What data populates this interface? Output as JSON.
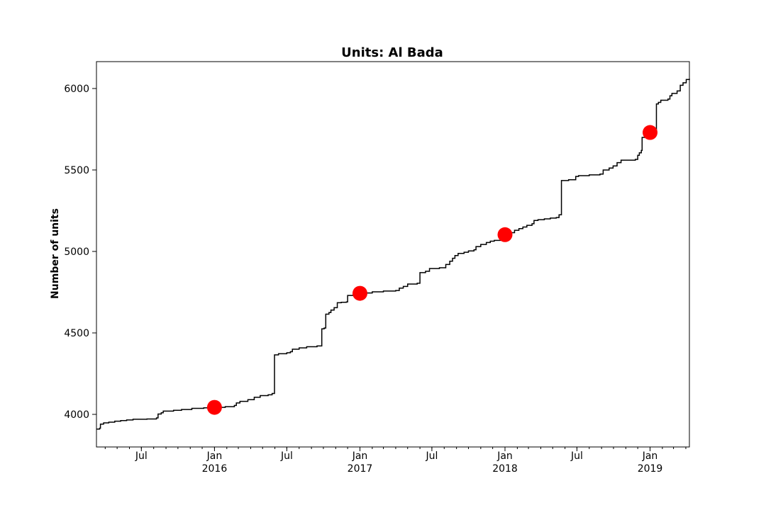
{
  "chart_data": {
    "type": "line",
    "title": "Units: Al Bada",
    "xlabel": "",
    "ylabel": "Number of units",
    "ylim": [
      3800,
      6165
    ],
    "xlim": [
      "2015-03-10",
      "2019-04-10"
    ],
    "yticks": [
      4000,
      4500,
      5000,
      5500,
      6000
    ],
    "xticks": [
      {
        "date": "2015-07-01",
        "label": "Jul",
        "sub": ""
      },
      {
        "date": "2016-01-01",
        "label": "Jan",
        "sub": "2016"
      },
      {
        "date": "2016-07-01",
        "label": "Jul",
        "sub": ""
      },
      {
        "date": "2017-01-01",
        "label": "Jan",
        "sub": "2017"
      },
      {
        "date": "2017-07-01",
        "label": "Jul",
        "sub": ""
      },
      {
        "date": "2018-01-01",
        "label": "Jan",
        "sub": "2018"
      },
      {
        "date": "2018-07-01",
        "label": "Jul",
        "sub": ""
      },
      {
        "date": "2019-01-01",
        "label": "Jan",
        "sub": "2019"
      }
    ],
    "series": [
      {
        "line_color": "#000000",
        "step": true,
        "points": [
          [
            "2015-03-10",
            3910
          ],
          [
            "2015-03-18",
            3915
          ],
          [
            "2015-03-20",
            3940
          ],
          [
            "2015-03-28",
            3948
          ],
          [
            "2015-04-10",
            3952
          ],
          [
            "2015-04-25",
            3958
          ],
          [
            "2015-05-10",
            3962
          ],
          [
            "2015-05-25",
            3966
          ],
          [
            "2015-06-10",
            3970
          ],
          [
            "2015-07-15",
            3972
          ],
          [
            "2015-08-08",
            3978
          ],
          [
            "2015-08-12",
            4002
          ],
          [
            "2015-08-20",
            4010
          ],
          [
            "2015-08-25",
            4020
          ],
          [
            "2015-09-20",
            4025
          ],
          [
            "2015-10-10",
            4030
          ],
          [
            "2015-11-05",
            4037
          ],
          [
            "2015-12-05",
            4040
          ],
          [
            "2016-01-15",
            4043
          ],
          [
            "2016-01-28",
            4047
          ],
          [
            "2016-02-20",
            4055
          ],
          [
            "2016-02-25",
            4070
          ],
          [
            "2016-03-05",
            4080
          ],
          [
            "2016-03-25",
            4090
          ],
          [
            "2016-04-10",
            4105
          ],
          [
            "2016-04-25",
            4115
          ],
          [
            "2016-05-15",
            4120
          ],
          [
            "2016-05-25",
            4128
          ],
          [
            "2016-05-31",
            4365
          ],
          [
            "2016-06-10",
            4372
          ],
          [
            "2016-07-01",
            4378
          ],
          [
            "2016-07-10",
            4385
          ],
          [
            "2016-07-15",
            4400
          ],
          [
            "2016-08-01",
            4408
          ],
          [
            "2016-08-20",
            4415
          ],
          [
            "2016-09-15",
            4420
          ],
          [
            "2016-09-27",
            4525
          ],
          [
            "2016-10-03",
            4530
          ],
          [
            "2016-10-07",
            4615
          ],
          [
            "2016-10-15",
            4625
          ],
          [
            "2016-10-20",
            4640
          ],
          [
            "2016-10-28",
            4655
          ],
          [
            "2016-11-05",
            4685
          ],
          [
            "2016-11-15",
            4688
          ],
          [
            "2016-11-28",
            4690
          ],
          [
            "2016-12-01",
            4730
          ],
          [
            "2016-12-15",
            4742
          ],
          [
            "2017-01-10",
            4745
          ],
          [
            "2017-02-01",
            4752
          ],
          [
            "2017-03-01",
            4757
          ],
          [
            "2017-04-01",
            4760
          ],
          [
            "2017-04-10",
            4775
          ],
          [
            "2017-04-20",
            4785
          ],
          [
            "2017-05-01",
            4800
          ],
          [
            "2017-05-25",
            4805
          ],
          [
            "2017-06-01",
            4870
          ],
          [
            "2017-06-15",
            4878
          ],
          [
            "2017-06-25",
            4895
          ],
          [
            "2017-07-20",
            4900
          ],
          [
            "2017-08-05",
            4920
          ],
          [
            "2017-08-15",
            4940
          ],
          [
            "2017-08-22",
            4958
          ],
          [
            "2017-08-28",
            4975
          ],
          [
            "2017-09-05",
            4988
          ],
          [
            "2017-09-20",
            4995
          ],
          [
            "2017-10-01",
            5003
          ],
          [
            "2017-10-15",
            5010
          ],
          [
            "2017-10-20",
            5030
          ],
          [
            "2017-11-01",
            5043
          ],
          [
            "2017-11-15",
            5055
          ],
          [
            "2017-11-25",
            5063
          ],
          [
            "2017-12-05",
            5068
          ],
          [
            "2017-12-20",
            5085
          ],
          [
            "2018-01-05",
            5095
          ],
          [
            "2018-01-15",
            5115
          ],
          [
            "2018-01-25",
            5130
          ],
          [
            "2018-02-05",
            5140
          ],
          [
            "2018-02-15",
            5150
          ],
          [
            "2018-02-25",
            5160
          ],
          [
            "2018-03-10",
            5170
          ],
          [
            "2018-03-15",
            5190
          ],
          [
            "2018-03-25",
            5195
          ],
          [
            "2018-04-10",
            5200
          ],
          [
            "2018-04-25",
            5205
          ],
          [
            "2018-05-10",
            5208
          ],
          [
            "2018-05-17",
            5225
          ],
          [
            "2018-05-23",
            5435
          ],
          [
            "2018-06-10",
            5440
          ],
          [
            "2018-06-28",
            5460
          ],
          [
            "2018-07-05",
            5465
          ],
          [
            "2018-08-01",
            5470
          ],
          [
            "2018-08-28",
            5475
          ],
          [
            "2018-09-05",
            5500
          ],
          [
            "2018-09-20",
            5512
          ],
          [
            "2018-09-30",
            5525
          ],
          [
            "2018-10-10",
            5545
          ],
          [
            "2018-10-20",
            5560
          ],
          [
            "2018-11-25",
            5565
          ],
          [
            "2018-12-01",
            5590
          ],
          [
            "2018-12-05",
            5605
          ],
          [
            "2018-12-10",
            5620
          ],
          [
            "2018-12-12",
            5700
          ],
          [
            "2018-12-20",
            5720
          ],
          [
            "2018-12-28",
            5735
          ],
          [
            "2019-01-10",
            5740
          ],
          [
            "2019-01-17",
            5905
          ],
          [
            "2019-01-22",
            5915
          ],
          [
            "2019-01-28",
            5928
          ],
          [
            "2019-02-15",
            5935
          ],
          [
            "2019-02-20",
            5955
          ],
          [
            "2019-02-25",
            5970
          ],
          [
            "2019-03-10",
            5985
          ],
          [
            "2019-03-18",
            6020
          ],
          [
            "2019-03-25",
            6035
          ],
          [
            "2019-04-02",
            6055
          ],
          [
            "2019-04-10",
            6060
          ]
        ]
      },
      {
        "type": "scatter",
        "marker_color": "#ff0000",
        "points": [
          [
            "2016-01-01",
            4043
          ],
          [
            "2017-01-01",
            4743
          ],
          [
            "2018-01-01",
            5103
          ],
          [
            "2019-01-01",
            5730
          ]
        ]
      }
    ]
  }
}
